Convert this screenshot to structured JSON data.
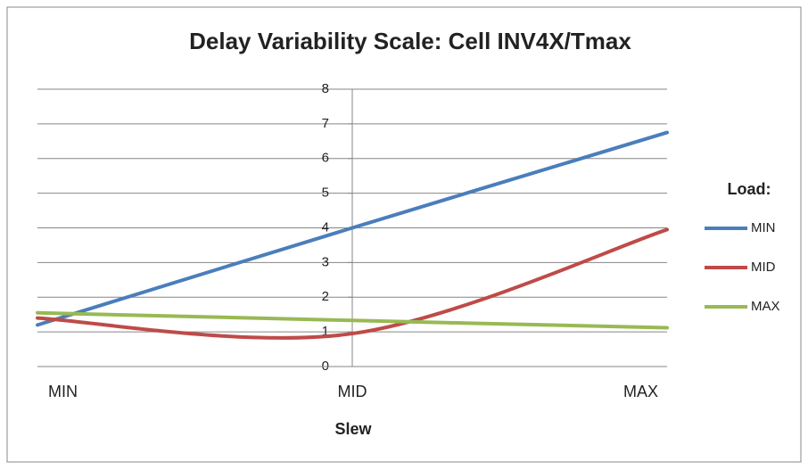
{
  "chart_data": {
    "type": "line",
    "title": "Delay Variability  Scale: Cell INV4X/Tmax",
    "x_label": "Slew",
    "legend_title": "Load:",
    "categories": [
      "MIN",
      "MID",
      "MAX"
    ],
    "series": [
      {
        "name": "MIN",
        "color": "#4a7ebb",
        "values": [
          1.2,
          4.0,
          6.75
        ]
      },
      {
        "name": "MID",
        "color": "#be4b48",
        "values": [
          1.4,
          0.95,
          3.95
        ]
      },
      {
        "name": "MAX",
        "color": "#98b954",
        "values": [
          1.55,
          1.33,
          1.12
        ]
      }
    ],
    "ylim": [
      0,
      8
    ],
    "yticks": [
      0,
      1,
      2,
      3,
      4,
      5,
      6,
      7,
      8
    ],
    "grid": true,
    "smooth": true,
    "legend": "right"
  }
}
